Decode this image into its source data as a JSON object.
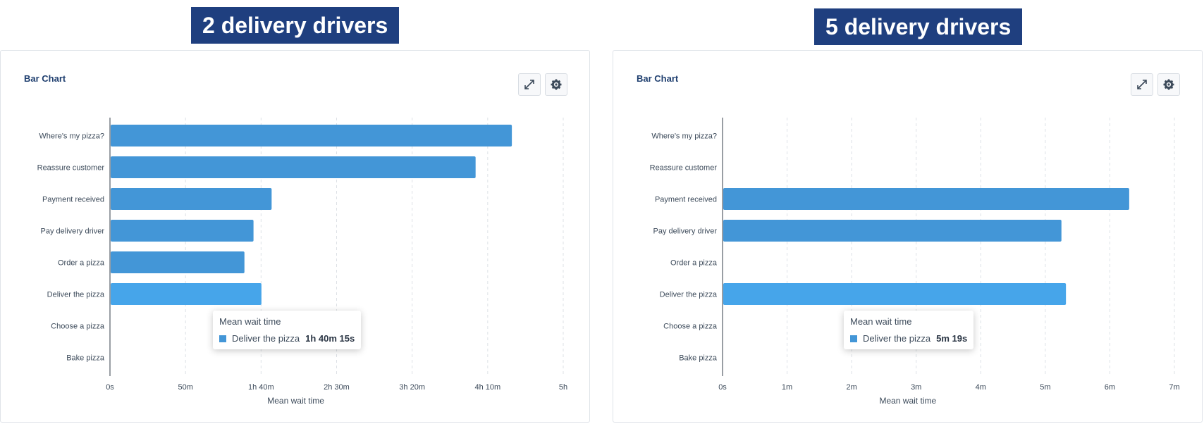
{
  "headings": [
    "2 delivery drivers",
    "5 delivery drivers"
  ],
  "colors": {
    "bar": "#4396d7",
    "bar_highlight": "#46a5ea",
    "heading_bg": "#1f3f7f"
  },
  "panels": [
    {
      "title": "Bar Chart",
      "tooltip": {
        "title": "Mean wait time",
        "series": "Deliver the pizza",
        "value": "1h 40m 15s"
      }
    },
    {
      "title": "Bar Chart",
      "tooltip": {
        "title": "Mean wait time",
        "series": "Deliver the pizza",
        "value": "5m 19s"
      }
    }
  ],
  "chart_data": [
    {
      "type": "bar",
      "orientation": "horizontal",
      "title": "Bar Chart",
      "categories": [
        "Where's my pizza?",
        "Reassure customer",
        "Payment received",
        "Pay delivery driver",
        "Order a pizza",
        "Deliver the pizza",
        "Choose a pizza",
        "Bake  pizza"
      ],
      "values": [
        266,
        242,
        107,
        95,
        89,
        100.25,
        0,
        0
      ],
      "highlight_category": "Deliver the pizza",
      "xlabel": "Mean wait time",
      "ylabel": "",
      "xlim": [
        0,
        300
      ],
      "ticks": [
        0,
        50,
        100,
        150,
        200,
        250,
        300
      ],
      "tick_labels": [
        "0s",
        "50m",
        "1h 40m",
        "2h 30m",
        "3h 20m",
        "4h 10m",
        "5h"
      ],
      "unit": "minutes"
    },
    {
      "type": "bar",
      "orientation": "horizontal",
      "title": "Bar Chart",
      "categories": [
        "Where's my pizza?",
        "Reassure customer",
        "Payment received",
        "Pay delivery driver",
        "Order a pizza",
        "Deliver the pizza",
        "Choose a pizza",
        "Bake  pizza"
      ],
      "values": [
        0,
        0,
        6.3,
        5.25,
        0,
        5.32,
        0,
        0
      ],
      "highlight_category": "Deliver the pizza",
      "xlabel": "Mean wait time",
      "ylabel": "",
      "xlim": [
        0,
        7
      ],
      "ticks": [
        0,
        1,
        2,
        3,
        4,
        5,
        6,
        7
      ],
      "tick_labels": [
        "0s",
        "1m",
        "2m",
        "3m",
        "4m",
        "5m",
        "6m",
        "7m"
      ],
      "unit": "minutes"
    }
  ]
}
